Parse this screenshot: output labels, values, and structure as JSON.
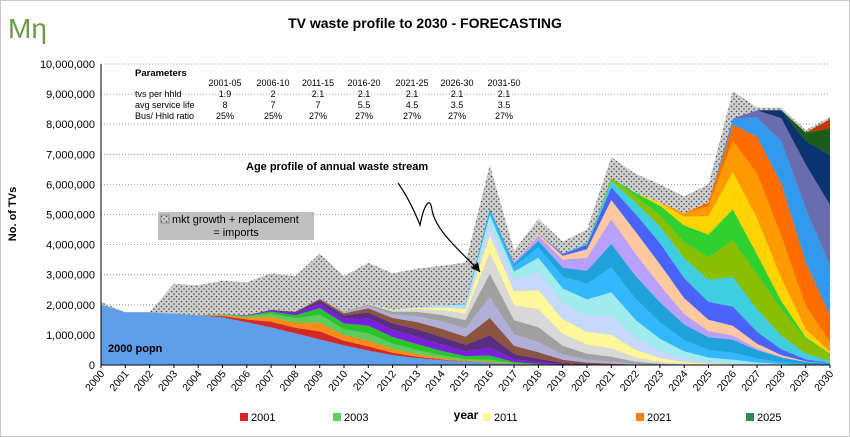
{
  "logo": {
    "text": "Mη"
  },
  "chart_data": {
    "type": "area",
    "title": "TV waste profile to 2030 - FORECASTING",
    "xlabel": "year",
    "ylabel": "No. of TVs",
    "ylim": [
      0,
      10000000
    ],
    "yticks": [
      "0",
      "1,000,000",
      "2,000,000",
      "3,000,000",
      "4,000,000",
      "5,000,000",
      "6,000,000",
      "7,000,000",
      "8,000,000",
      "9,000,000",
      "10,000,000"
    ],
    "x": [
      2000,
      2001,
      2002,
      2003,
      2004,
      2005,
      2006,
      2007,
      2008,
      2009,
      2010,
      2011,
      2012,
      2013,
      2014,
      2015,
      2016,
      2017,
      2018,
      2019,
      2020,
      2021,
      2022,
      2023,
      2024,
      2025,
      2026,
      2027,
      2028,
      2029,
      2030
    ],
    "grid": "dotted horizontal",
    "total_envelope": [
      2100000,
      1750000,
      1750000,
      2700000,
      2650000,
      2800000,
      2750000,
      3050000,
      2950000,
      3700000,
      2950000,
      3400000,
      3050000,
      3200000,
      3300000,
      3400000,
      6650000,
      3800000,
      4850000,
      4100000,
      4500000,
      6900000,
      6350000,
      6000000,
      5600000,
      6000000,
      9100000,
      8550000,
      8550000,
      7800000,
      8250000
    ],
    "base_popn": [
      2000000,
      1750000,
      1750000,
      1700000,
      1650000,
      1580000,
      1420000,
      1250000,
      1050000,
      850000,
      650000,
      480000,
      330000,
      230000,
      160000,
      110000,
      70000,
      30000,
      0,
      0,
      0,
      0,
      0,
      0,
      0,
      0,
      0,
      0,
      0,
      0,
      0
    ],
    "cohort_colors": [
      "#d62728",
      "#ff8c1a",
      "#5ccd5c",
      "#29c429",
      "#7a1fe0",
      "#5a2d82",
      "#8c5340",
      "#b0afd8",
      "#a0a0a0",
      "#d8d8d8",
      "#fff89a",
      "#c8d8ff",
      "#a0ecec",
      "#33b8ff",
      "#1fa2d9",
      "#b8a0ff",
      "#ffc8a0",
      "#4a63ff",
      "#3fcde0",
      "#88c000",
      "#2fd02f",
      "#ffd400",
      "#ff9900",
      "#ff6d00",
      "#3399ee",
      "#6a6cb0",
      "#0a3370",
      "#1a5c1a",
      "#b83a00",
      "#7a2878"
    ],
    "annotation": "Age profile of annual waste stream",
    "legend_box": [
      "mkt growth + replacement",
      "= imports"
    ],
    "region_label": "2000 popn",
    "legend": [
      {
        "name": "2001",
        "color": "#d62728"
      },
      {
        "name": "2003",
        "color": "#5ccd5c"
      },
      {
        "name": "2011",
        "color": "#fff89a"
      },
      {
        "name": "2021",
        "color": "#ff7f0e"
      },
      {
        "name": "2025",
        "color": "#2e8b57"
      }
    ],
    "parameters": {
      "heading": "Parameters",
      "periods": [
        "2001-05",
        "2006-10",
        "2011-15",
        "2016-20",
        "2021-25",
        "2026-30",
        "2031-50"
      ],
      "rows": [
        {
          "label": "tvs per hhld",
          "values": [
            "1.9",
            "2",
            "2.1",
            "2.1",
            "2.1",
            "2.1",
            "2.1"
          ]
        },
        {
          "label": "avg service life",
          "values": [
            "8",
            "7",
            "7",
            "5.5",
            "4.5",
            "3.5",
            "3.5"
          ]
        },
        {
          "label": "Bus/ Hhld ratio",
          "values": [
            "25%",
            "25%",
            "27%",
            "27%",
            "27%",
            "27%",
            "27%"
          ]
        }
      ]
    }
  }
}
